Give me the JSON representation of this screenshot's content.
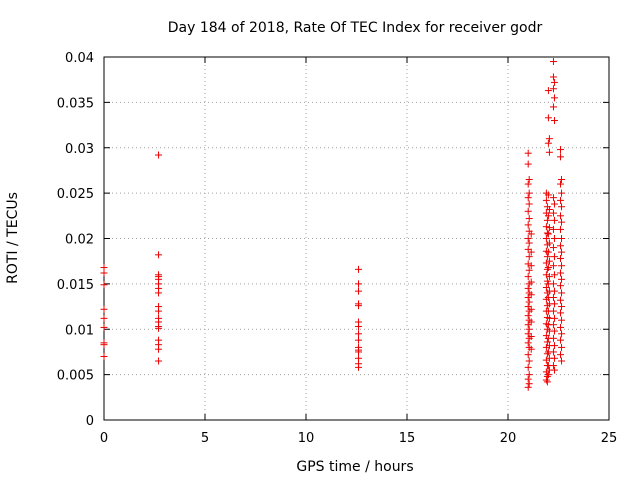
{
  "chart_data": {
    "type": "scatter",
    "title": "Day 184 of 2018, Rate Of TEC Index for receiver godr",
    "xlabel": "GPS time / hours",
    "ylabel": "ROTI / TECUs",
    "xlim": [
      0,
      25
    ],
    "ylim": [
      0,
      0.04
    ],
    "xticks": [
      "0",
      "5",
      "10",
      "15",
      "20",
      "25"
    ],
    "yticks": [
      "0",
      "0.005",
      "0.01",
      "0.015",
      "0.02",
      "0.025",
      "0.03",
      "0.035",
      "0.04"
    ],
    "grid": true,
    "marker": "+",
    "color": "#ee0000",
    "series": [
      {
        "name": "ROTI",
        "points": [
          [
            0.0,
            0.0168
          ],
          [
            0.0,
            0.0162
          ],
          [
            0.0,
            0.0149
          ],
          [
            0.0,
            0.0122
          ],
          [
            0.0,
            0.0112
          ],
          [
            0.0,
            0.0102
          ],
          [
            0.0,
            0.0085
          ],
          [
            0.0,
            0.0083
          ],
          [
            0.0,
            0.007
          ],
          [
            2.7,
            0.0292
          ],
          [
            2.7,
            0.0182
          ],
          [
            2.7,
            0.016
          ],
          [
            2.7,
            0.0158
          ],
          [
            2.7,
            0.0155
          ],
          [
            2.7,
            0.015
          ],
          [
            2.7,
            0.0145
          ],
          [
            2.7,
            0.014
          ],
          [
            2.7,
            0.0125
          ],
          [
            2.7,
            0.012
          ],
          [
            2.7,
            0.0112
          ],
          [
            2.7,
            0.0108
          ],
          [
            2.7,
            0.0103
          ],
          [
            2.7,
            0.0101
          ],
          [
            2.7,
            0.0088
          ],
          [
            2.7,
            0.0083
          ],
          [
            2.7,
            0.0078
          ],
          [
            2.7,
            0.0065
          ],
          [
            12.6,
            0.0166
          ],
          [
            12.6,
            0.015
          ],
          [
            12.6,
            0.0142
          ],
          [
            12.6,
            0.0128
          ],
          [
            12.6,
            0.0126
          ],
          [
            12.6,
            0.0108
          ],
          [
            12.6,
            0.0103
          ],
          [
            12.6,
            0.0095
          ],
          [
            12.6,
            0.0088
          ],
          [
            12.6,
            0.008
          ],
          [
            12.6,
            0.0077
          ],
          [
            12.6,
            0.0075
          ],
          [
            12.6,
            0.0068
          ],
          [
            12.6,
            0.0062
          ],
          [
            12.6,
            0.0058
          ],
          [
            21.0,
            0.0294
          ],
          [
            21.0,
            0.0282
          ],
          [
            21.05,
            0.0265
          ],
          [
            21.0,
            0.026
          ],
          [
            21.05,
            0.025
          ],
          [
            21.0,
            0.0245
          ],
          [
            21.05,
            0.0238
          ],
          [
            21.0,
            0.023
          ],
          [
            21.05,
            0.0222
          ],
          [
            21.0,
            0.0215
          ],
          [
            21.05,
            0.0208
          ],
          [
            21.0,
            0.02
          ],
          [
            21.05,
            0.0195
          ],
          [
            21.0,
            0.0188
          ],
          [
            21.05,
            0.018
          ],
          [
            21.0,
            0.0172
          ],
          [
            21.05,
            0.0165
          ],
          [
            21.0,
            0.0158
          ],
          [
            21.05,
            0.015
          ],
          [
            21.0,
            0.0145
          ],
          [
            21.05,
            0.014
          ],
          [
            21.0,
            0.0135
          ],
          [
            21.05,
            0.013
          ],
          [
            21.0,
            0.0125
          ],
          [
            21.05,
            0.012
          ],
          [
            21.0,
            0.0115
          ],
          [
            21.05,
            0.011
          ],
          [
            21.0,
            0.0105
          ],
          [
            21.05,
            0.01
          ],
          [
            21.0,
            0.0095
          ],
          [
            21.05,
            0.009
          ],
          [
            21.0,
            0.0085
          ],
          [
            21.05,
            0.008
          ],
          [
            21.0,
            0.0072
          ],
          [
            21.05,
            0.0065
          ],
          [
            21.0,
            0.0058
          ],
          [
            21.05,
            0.005
          ],
          [
            21.0,
            0.0045
          ],
          [
            21.05,
            0.004
          ],
          [
            21.0,
            0.0036
          ],
          [
            21.15,
            0.0205
          ],
          [
            21.15,
            0.0185
          ],
          [
            21.15,
            0.017
          ],
          [
            21.15,
            0.0152
          ],
          [
            21.15,
            0.0138
          ],
          [
            21.15,
            0.0122
          ],
          [
            21.15,
            0.0108
          ],
          [
            21.15,
            0.0092
          ],
          [
            21.15,
            0.0078
          ],
          [
            21.9,
            0.025
          ],
          [
            21.9,
            0.0242
          ],
          [
            21.95,
            0.0235
          ],
          [
            21.9,
            0.0228
          ],
          [
            21.95,
            0.022
          ],
          [
            21.9,
            0.0213
          ],
          [
            21.95,
            0.0206
          ],
          [
            21.9,
            0.02
          ],
          [
            21.95,
            0.0193
          ],
          [
            21.9,
            0.0186
          ],
          [
            21.95,
            0.018
          ],
          [
            21.9,
            0.0173
          ],
          [
            21.95,
            0.0166
          ],
          [
            21.9,
            0.016
          ],
          [
            21.95,
            0.0153
          ],
          [
            21.9,
            0.0146
          ],
          [
            21.95,
            0.014
          ],
          [
            21.9,
            0.0133
          ],
          [
            21.95,
            0.0126
          ],
          [
            21.9,
            0.012
          ],
          [
            21.95,
            0.0113
          ],
          [
            21.9,
            0.0106
          ],
          [
            21.95,
            0.01
          ],
          [
            21.9,
            0.0093
          ],
          [
            21.95,
            0.0086
          ],
          [
            21.9,
            0.008
          ],
          [
            21.95,
            0.0073
          ],
          [
            21.9,
            0.0066
          ],
          [
            21.95,
            0.006
          ],
          [
            21.9,
            0.0053
          ],
          [
            21.95,
            0.0048
          ],
          [
            21.9,
            0.0044
          ],
          [
            21.95,
            0.0042
          ],
          [
            22.0,
            0.0363
          ],
          [
            22.0,
            0.0333
          ],
          [
            22.05,
            0.031
          ],
          [
            22.0,
            0.0305
          ],
          [
            22.05,
            0.0295
          ],
          [
            22.0,
            0.0248
          ],
          [
            22.05,
            0.0232
          ],
          [
            22.0,
            0.0225
          ],
          [
            22.05,
            0.0212
          ],
          [
            22.0,
            0.0205
          ],
          [
            22.05,
            0.0195
          ],
          [
            22.0,
            0.0185
          ],
          [
            22.05,
            0.0175
          ],
          [
            22.0,
            0.0168
          ],
          [
            22.05,
            0.0158
          ],
          [
            22.0,
            0.015
          ],
          [
            22.05,
            0.0142
          ],
          [
            22.0,
            0.0135
          ],
          [
            22.05,
            0.0128
          ],
          [
            22.0,
            0.012
          ],
          [
            22.05,
            0.0112
          ],
          [
            22.0,
            0.0105
          ],
          [
            22.05,
            0.0098
          ],
          [
            22.0,
            0.009
          ],
          [
            22.05,
            0.0082
          ],
          [
            22.0,
            0.0075
          ],
          [
            22.05,
            0.0068
          ],
          [
            22.0,
            0.006
          ],
          [
            22.05,
            0.0055
          ],
          [
            22.0,
            0.005
          ],
          [
            22.25,
            0.0395
          ],
          [
            22.25,
            0.0378
          ],
          [
            22.3,
            0.0372
          ],
          [
            22.25,
            0.0365
          ],
          [
            22.3,
            0.0355
          ],
          [
            22.25,
            0.0345
          ],
          [
            22.3,
            0.033
          ],
          [
            22.25,
            0.0245
          ],
          [
            22.3,
            0.0238
          ],
          [
            22.25,
            0.0228
          ],
          [
            22.3,
            0.022
          ],
          [
            22.25,
            0.021
          ],
          [
            22.3,
            0.02
          ],
          [
            22.25,
            0.019
          ],
          [
            22.3,
            0.018
          ],
          [
            22.25,
            0.017
          ],
          [
            22.3,
            0.016
          ],
          [
            22.25,
            0.015
          ],
          [
            22.3,
            0.0142
          ],
          [
            22.25,
            0.0135
          ],
          [
            22.3,
            0.0128
          ],
          [
            22.25,
            0.012
          ],
          [
            22.3,
            0.0112
          ],
          [
            22.25,
            0.0105
          ],
          [
            22.3,
            0.0098
          ],
          [
            22.25,
            0.009
          ],
          [
            22.3,
            0.0082
          ],
          [
            22.25,
            0.0075
          ],
          [
            22.3,
            0.0068
          ],
          [
            22.25,
            0.006
          ],
          [
            22.3,
            0.0055
          ],
          [
            22.6,
            0.0298
          ],
          [
            22.6,
            0.029
          ],
          [
            22.65,
            0.0265
          ],
          [
            22.6,
            0.026
          ],
          [
            22.65,
            0.025
          ],
          [
            22.6,
            0.0242
          ],
          [
            22.65,
            0.0235
          ],
          [
            22.6,
            0.0225
          ],
          [
            22.65,
            0.0218
          ],
          [
            22.6,
            0.021
          ],
          [
            22.65,
            0.02
          ],
          [
            22.6,
            0.0192
          ],
          [
            22.65,
            0.0185
          ],
          [
            22.6,
            0.0178
          ],
          [
            22.65,
            0.017
          ],
          [
            22.6,
            0.0162
          ],
          [
            22.65,
            0.0155
          ],
          [
            22.6,
            0.0148
          ],
          [
            22.65,
            0.014
          ],
          [
            22.6,
            0.0132
          ],
          [
            22.65,
            0.0125
          ],
          [
            22.6,
            0.0118
          ],
          [
            22.65,
            0.011
          ],
          [
            22.6,
            0.0102
          ],
          [
            22.65,
            0.0095
          ],
          [
            22.6,
            0.0088
          ],
          [
            22.65,
            0.008
          ],
          [
            22.6,
            0.0072
          ],
          [
            22.65,
            0.0065
          ]
        ]
      }
    ]
  }
}
